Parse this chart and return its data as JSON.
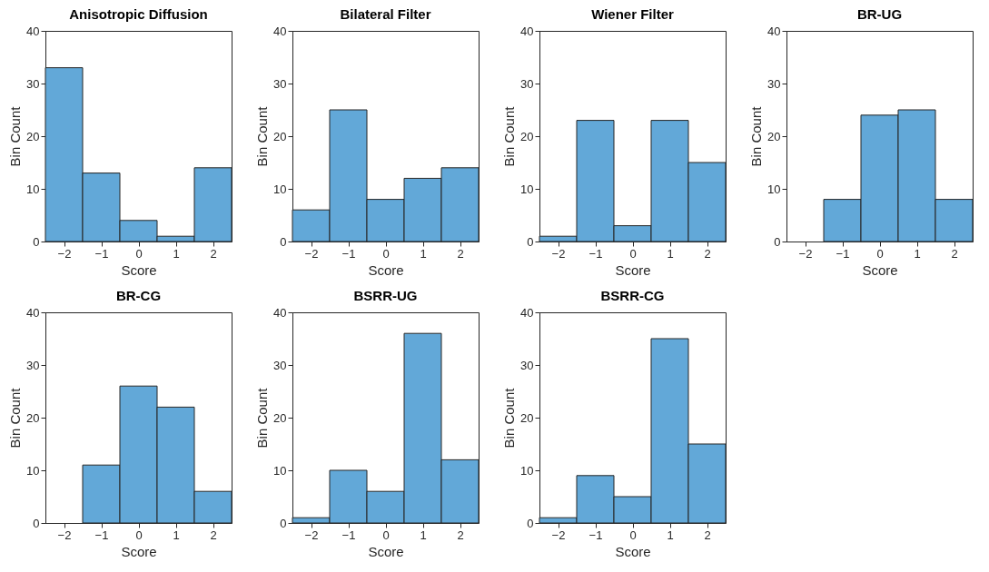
{
  "chart_data": [
    {
      "type": "histogram",
      "title": "Anisotropic Diffusion",
      "xlabel": "Score",
      "ylabel": "Bin Count",
      "bins": [
        -2.5,
        -1.5,
        -0.5,
        0.5,
        1.5,
        2.5
      ],
      "values": [
        33,
        13,
        4,
        1,
        14
      ],
      "color": "#62a8d8",
      "xlim": [
        -2.5,
        2.5
      ],
      "xticks": [
        -2,
        -1,
        0,
        1,
        2
      ],
      "ylim": [
        0,
        40
      ],
      "yticks": [
        0,
        10,
        20,
        30,
        40
      ]
    },
    {
      "type": "histogram",
      "title": "Bilateral Filter",
      "xlabel": "Score",
      "ylabel": "Bin Count",
      "bins": [
        -2.5,
        -1.5,
        -0.5,
        0.5,
        1.5,
        2.5
      ],
      "values": [
        6,
        25,
        8,
        12,
        14
      ],
      "color": "#62a8d8",
      "xlim": [
        -2.5,
        2.5
      ],
      "xticks": [
        -2,
        -1,
        0,
        1,
        2
      ],
      "ylim": [
        0,
        40
      ],
      "yticks": [
        0,
        10,
        20,
        30,
        40
      ]
    },
    {
      "type": "histogram",
      "title": "Wiener Filter",
      "xlabel": "Score",
      "ylabel": "Bin Count",
      "bins": [
        -2.5,
        -1.5,
        -0.5,
        0.5,
        1.5,
        2.5
      ],
      "values": [
        1,
        23,
        3,
        23,
        15
      ],
      "color": "#62a8d8",
      "xlim": [
        -2.5,
        2.5
      ],
      "xticks": [
        -2,
        -1,
        0,
        1,
        2
      ],
      "ylim": [
        0,
        40
      ],
      "yticks": [
        0,
        10,
        20,
        30,
        40
      ]
    },
    {
      "type": "histogram",
      "title": "BR-UG",
      "xlabel": "Score",
      "ylabel": "Bin Count",
      "bins": [
        -2.5,
        -1.5,
        -0.5,
        0.5,
        1.5,
        2.5
      ],
      "values": [
        0,
        8,
        24,
        25,
        8
      ],
      "color": "#62a8d8",
      "xlim": [
        -2.5,
        2.5
      ],
      "xticks": [
        -2,
        -1,
        0,
        1,
        2
      ],
      "ylim": [
        0,
        40
      ],
      "yticks": [
        0,
        10,
        20,
        30,
        40
      ]
    },
    {
      "type": "histogram",
      "title": "BR-CG",
      "xlabel": "Score",
      "ylabel": "Bin Count",
      "bins": [
        -2.5,
        -1.5,
        -0.5,
        0.5,
        1.5,
        2.5
      ],
      "values": [
        0,
        11,
        26,
        22,
        6
      ],
      "color": "#62a8d8",
      "xlim": [
        -2.5,
        2.5
      ],
      "xticks": [
        -2,
        -1,
        0,
        1,
        2
      ],
      "ylim": [
        0,
        40
      ],
      "yticks": [
        0,
        10,
        20,
        30,
        40
      ]
    },
    {
      "type": "histogram",
      "title": "BSRR-UG",
      "xlabel": "Score",
      "ylabel": "Bin Count",
      "bins": [
        -2.5,
        -1.5,
        -0.5,
        0.5,
        1.5,
        2.5
      ],
      "values": [
        1,
        10,
        6,
        36,
        12
      ],
      "color": "#62a8d8",
      "xlim": [
        -2.5,
        2.5
      ],
      "xticks": [
        -2,
        -1,
        0,
        1,
        2
      ],
      "ylim": [
        0,
        40
      ],
      "yticks": [
        0,
        10,
        20,
        30,
        40
      ]
    },
    {
      "type": "histogram",
      "title": "BSRR-CG",
      "xlabel": "Score",
      "ylabel": "Bin Count",
      "bins": [
        -2.5,
        -1.5,
        -0.5,
        0.5,
        1.5,
        2.5
      ],
      "values": [
        1,
        9,
        5,
        35,
        15
      ],
      "color": "#62a8d8",
      "xlim": [
        -2.5,
        2.5
      ],
      "xticks": [
        -2,
        -1,
        0,
        1,
        2
      ],
      "ylim": [
        0,
        40
      ],
      "yticks": [
        0,
        10,
        20,
        30,
        40
      ]
    }
  ]
}
